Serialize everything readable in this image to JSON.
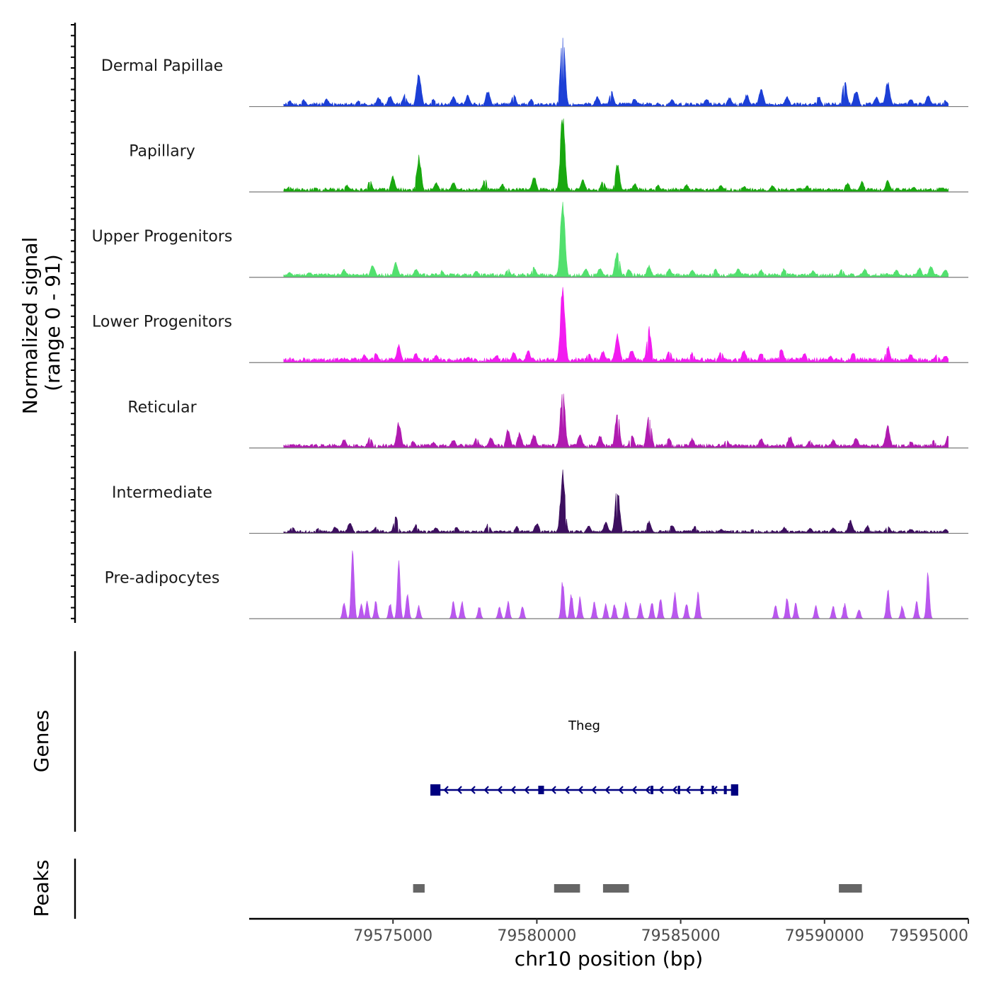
{
  "chart_data": {
    "type": "area",
    "title": "",
    "ylabel": "Normalized signal",
    "ylabel_range": "(range 0 - 91)",
    "xlabel": "chr10 position (bp)",
    "chromosome": "chr10",
    "xlim": [
      79570000,
      79595000
    ],
    "x_ticks": [
      79575000,
      79580000,
      79585000,
      79590000,
      79595000
    ],
    "x_tick_labels": [
      "79575000",
      "79580000",
      "79585000",
      "79590000",
      "79595000"
    ],
    "ylim": [
      0,
      91
    ],
    "data_range": [
      79571200,
      79594300
    ],
    "tracks": [
      {
        "name": "Dermal Papillae",
        "color": "#1c3fd6",
        "baseline": 4,
        "peaks": [
          [
            79571400,
            7
          ],
          [
            79571900,
            8
          ],
          [
            79572700,
            9
          ],
          [
            79573800,
            7
          ],
          [
            79574500,
            11
          ],
          [
            79574900,
            13
          ],
          [
            79575400,
            14
          ],
          [
            79575900,
            40
          ],
          [
            79576400,
            9
          ],
          [
            79577100,
            12
          ],
          [
            79577600,
            14
          ],
          [
            79578300,
            19
          ],
          [
            79579200,
            14
          ],
          [
            79579800,
            9
          ],
          [
            79580900,
            88
          ],
          [
            79582100,
            12
          ],
          [
            79582600,
            17
          ],
          [
            79583400,
            10
          ],
          [
            79584700,
            9
          ],
          [
            79585900,
            10
          ],
          [
            79586700,
            11
          ],
          [
            79587300,
            14
          ],
          [
            79587800,
            23
          ],
          [
            79588700,
            12
          ],
          [
            79589800,
            12
          ],
          [
            79590700,
            29
          ],
          [
            79591100,
            20
          ],
          [
            79591800,
            11
          ],
          [
            79592200,
            29
          ],
          [
            79593000,
            9
          ],
          [
            79593600,
            14
          ],
          [
            79594200,
            7
          ]
        ]
      },
      {
        "name": "Papillary",
        "color": "#19a80f",
        "baseline": 4,
        "peaks": [
          [
            79571400,
            6
          ],
          [
            79572300,
            5
          ],
          [
            79573400,
            8
          ],
          [
            79574200,
            13
          ],
          [
            79575000,
            18
          ],
          [
            79575900,
            42
          ],
          [
            79576500,
            12
          ],
          [
            79577100,
            11
          ],
          [
            79578200,
            15
          ],
          [
            79578800,
            9
          ],
          [
            79579900,
            18
          ],
          [
            79580900,
            91
          ],
          [
            79581600,
            14
          ],
          [
            79582300,
            13
          ],
          [
            79582800,
            33
          ],
          [
            79583400,
            10
          ],
          [
            79584200,
            8
          ],
          [
            79585200,
            9
          ],
          [
            79586400,
            8
          ],
          [
            79587200,
            7
          ],
          [
            79588200,
            8
          ],
          [
            79589400,
            7
          ],
          [
            79590800,
            11
          ],
          [
            79591300,
            12
          ],
          [
            79592200,
            13
          ],
          [
            79593100,
            6
          ],
          [
            79594100,
            5
          ]
        ]
      },
      {
        "name": "Upper Progenitors",
        "color": "#52e06e",
        "baseline": 4,
        "peaks": [
          [
            79571400,
            6
          ],
          [
            79572100,
            6
          ],
          [
            79573300,
            9
          ],
          [
            79574300,
            15
          ],
          [
            79575100,
            17
          ],
          [
            79575800,
            10
          ],
          [
            79576700,
            8
          ],
          [
            79577900,
            8
          ],
          [
            79579000,
            10
          ],
          [
            79579900,
            12
          ],
          [
            79580900,
            91
          ],
          [
            79581700,
            10
          ],
          [
            79582200,
            11
          ],
          [
            79582800,
            32
          ],
          [
            79583200,
            10
          ],
          [
            79583900,
            14
          ],
          [
            79584600,
            10
          ],
          [
            79585400,
            9
          ],
          [
            79586200,
            10
          ],
          [
            79587000,
            11
          ],
          [
            79587800,
            9
          ],
          [
            79588600,
            10
          ],
          [
            79589600,
            8
          ],
          [
            79590600,
            9
          ],
          [
            79591400,
            10
          ],
          [
            79592500,
            9
          ],
          [
            79593300,
            11
          ],
          [
            79593700,
            13
          ],
          [
            79594200,
            9
          ]
        ]
      },
      {
        "name": "Lower Progenitors",
        "color": "#f21cf0",
        "baseline": 5,
        "peaks": [
          [
            79571500,
            4
          ],
          [
            79572100,
            4
          ],
          [
            79573200,
            5
          ],
          [
            79574000,
            9
          ],
          [
            79574400,
            12
          ],
          [
            79575200,
            20
          ],
          [
            79575800,
            11
          ],
          [
            79576500,
            9
          ],
          [
            79577600,
            7
          ],
          [
            79578600,
            9
          ],
          [
            79579200,
            12
          ],
          [
            79579700,
            14
          ],
          [
            79580900,
            90
          ],
          [
            79581800,
            11
          ],
          [
            79582300,
            13
          ],
          [
            79582800,
            33
          ],
          [
            79583300,
            16
          ],
          [
            79583900,
            40
          ],
          [
            79584600,
            14
          ],
          [
            79585400,
            12
          ],
          [
            79586400,
            13
          ],
          [
            79587200,
            15
          ],
          [
            79587800,
            12
          ],
          [
            79588500,
            16
          ],
          [
            79589300,
            11
          ],
          [
            79590200,
            8
          ],
          [
            79591000,
            12
          ],
          [
            79592200,
            19
          ],
          [
            79593000,
            10
          ],
          [
            79593900,
            10
          ],
          [
            79594200,
            9
          ]
        ]
      },
      {
        "name": "Reticular",
        "color": "#b01ab0",
        "baseline": 4,
        "peaks": [
          [
            79571500,
            4
          ],
          [
            79572300,
            4
          ],
          [
            79573300,
            10
          ],
          [
            79574200,
            12
          ],
          [
            79575200,
            30
          ],
          [
            79575700,
            8
          ],
          [
            79576400,
            7
          ],
          [
            79577100,
            10
          ],
          [
            79577900,
            12
          ],
          [
            79578400,
            13
          ],
          [
            79579000,
            22
          ],
          [
            79579400,
            18
          ],
          [
            79579900,
            16
          ],
          [
            79580900,
            70
          ],
          [
            79581500,
            16
          ],
          [
            79582200,
            14
          ],
          [
            79582800,
            40
          ],
          [
            79583300,
            16
          ],
          [
            79583900,
            42
          ],
          [
            79584600,
            12
          ],
          [
            79585400,
            11
          ],
          [
            79586600,
            10
          ],
          [
            79587800,
            11
          ],
          [
            79588800,
            14
          ],
          [
            79589500,
            9
          ],
          [
            79590300,
            10
          ],
          [
            79591100,
            12
          ],
          [
            79592200,
            25
          ],
          [
            79593000,
            8
          ],
          [
            79593800,
            9
          ],
          [
            79594300,
            14
          ]
        ]
      },
      {
        "name": "Intermediate",
        "color": "#3d0f5f",
        "baseline": 3,
        "peaks": [
          [
            79571500,
            8
          ],
          [
            79572400,
            6
          ],
          [
            79573000,
            8
          ],
          [
            79573500,
            13
          ],
          [
            79574400,
            7
          ],
          [
            79575100,
            20
          ],
          [
            79575800,
            10
          ],
          [
            79576500,
            7
          ],
          [
            79577200,
            8
          ],
          [
            79578300,
            11
          ],
          [
            79579300,
            8
          ],
          [
            79580000,
            12
          ],
          [
            79580900,
            70
          ],
          [
            79581800,
            9
          ],
          [
            79582400,
            13
          ],
          [
            79582800,
            55
          ],
          [
            79583900,
            14
          ],
          [
            79584700,
            10
          ],
          [
            79585500,
            8
          ],
          [
            79586400,
            5
          ],
          [
            79587500,
            5
          ],
          [
            79588600,
            7
          ],
          [
            79589500,
            6
          ],
          [
            79590300,
            7
          ],
          [
            79590900,
            16
          ],
          [
            79591500,
            9
          ],
          [
            79592200,
            9
          ],
          [
            79593000,
            5
          ],
          [
            79594200,
            5
          ]
        ]
      },
      {
        "name": "Pre-adipocytes",
        "color": "#b957ee",
        "baseline": 0,
        "peaks": [
          [
            79573300,
            20
          ],
          [
            79573600,
            85
          ],
          [
            79573900,
            18
          ],
          [
            79574100,
            20
          ],
          [
            79574400,
            20
          ],
          [
            79574900,
            18
          ],
          [
            79575200,
            65
          ],
          [
            79575500,
            30
          ],
          [
            79575900,
            15
          ],
          [
            79577100,
            20
          ],
          [
            79577400,
            20
          ],
          [
            79578000,
            15
          ],
          [
            79578700,
            15
          ],
          [
            79579000,
            20
          ],
          [
            79579500,
            15
          ],
          [
            79580900,
            45
          ],
          [
            79581200,
            30
          ],
          [
            79581500,
            25
          ],
          [
            79582000,
            20
          ],
          [
            79582400,
            18
          ],
          [
            79582700,
            18
          ],
          [
            79583100,
            20
          ],
          [
            79583600,
            18
          ],
          [
            79584000,
            20
          ],
          [
            79584300,
            25
          ],
          [
            79584800,
            30
          ],
          [
            79585200,
            20
          ],
          [
            79585600,
            30
          ],
          [
            79588300,
            15
          ],
          [
            79588700,
            25
          ],
          [
            79589000,
            18
          ],
          [
            79589700,
            15
          ],
          [
            79590300,
            15
          ],
          [
            79590700,
            18
          ],
          [
            79591200,
            12
          ],
          [
            79592200,
            35
          ],
          [
            79592700,
            15
          ],
          [
            79593200,
            20
          ],
          [
            79593600,
            55
          ]
        ]
      }
    ],
    "genes": [
      {
        "name": "Theg",
        "strand": "-",
        "start": 79576300,
        "end": 79587000,
        "exons": [
          [
            79576300,
            79576650
          ],
          [
            79580050,
            79580250
          ],
          [
            79583950,
            79584050
          ],
          [
            79584900,
            79584980
          ],
          [
            79585700,
            79585760
          ],
          [
            79586080,
            79586160
          ],
          [
            79586500,
            79586600
          ],
          [
            79586750,
            79587000
          ]
        ]
      }
    ],
    "peaks_track": [
      [
        79575700,
        79576100
      ],
      [
        79580600,
        79581500
      ],
      [
        79582300,
        79583200
      ],
      [
        79590500,
        79591300
      ]
    ],
    "legend": "none"
  },
  "panels": {
    "genes_title": "Genes",
    "peaks_title": "Peaks"
  }
}
